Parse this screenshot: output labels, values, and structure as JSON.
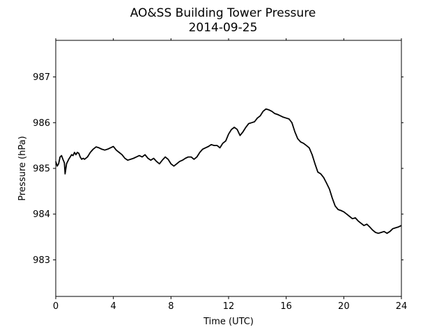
{
  "chart_data": {
    "type": "line",
    "title": "AO&SS Building Tower Pressure",
    "subtitle": "2014-09-25",
    "xlabel": "Time (UTC)",
    "ylabel": "Pressure (hPa)",
    "xlim": [
      0,
      24
    ],
    "ylim": [
      982.2,
      987.8
    ],
    "xticks": [
      0,
      4,
      8,
      12,
      16,
      20,
      24
    ],
    "xtick_labels": [
      "0",
      "4",
      "8",
      "12",
      "16",
      "20",
      "24"
    ],
    "yticks": [
      983,
      984,
      985,
      986,
      987
    ],
    "ytick_labels": [
      "983",
      "984",
      "985",
      "986",
      "987"
    ],
    "grid": false,
    "line_color": "#000000",
    "series": [
      {
        "x": [
          0.0,
          0.1,
          0.2,
          0.3,
          0.4,
          0.5,
          0.6,
          0.65,
          0.75,
          0.9,
          1.0,
          1.1,
          1.2,
          1.3,
          1.4,
          1.5,
          1.6,
          1.7,
          1.8,
          1.9,
          2.0,
          2.2,
          2.4,
          2.6,
          2.8,
          3.0,
          3.2,
          3.4,
          3.6,
          3.8,
          4.0,
          4.2,
          4.4,
          4.6,
          4.8,
          5.0,
          5.2,
          5.4,
          5.6,
          5.8,
          6.0,
          6.2,
          6.4,
          6.6,
          6.8,
          7.0,
          7.2,
          7.4,
          7.6,
          7.8,
          8.0,
          8.2,
          8.4,
          8.6,
          8.8,
          9.0,
          9.2,
          9.4,
          9.6,
          9.8,
          10.0,
          10.2,
          10.4,
          10.6,
          10.8,
          11.0,
          11.2,
          11.4,
          11.6,
          11.8,
          12.0,
          12.2,
          12.4,
          12.6,
          12.8,
          13.0,
          13.2,
          13.4,
          13.6,
          13.8,
          14.0,
          14.2,
          14.4,
          14.6,
          14.8,
          15.0,
          15.2,
          15.4,
          15.6,
          15.8,
          16.0,
          16.2,
          16.4,
          16.6,
          16.8,
          17.0,
          17.2,
          17.4,
          17.6,
          17.8,
          18.0,
          18.2,
          18.4,
          18.6,
          18.8,
          19.0,
          19.2,
          19.4,
          19.6,
          19.8,
          20.0,
          20.2,
          20.4,
          20.6,
          20.8,
          21.0,
          21.2,
          21.4,
          21.6,
          21.8,
          22.0,
          22.2,
          22.4,
          22.6,
          22.8,
          23.0,
          23.2,
          23.4,
          23.6,
          23.8,
          24.0
        ],
        "values": [
          985.15,
          985.05,
          985.1,
          985.25,
          985.28,
          985.2,
          985.12,
          984.88,
          985.1,
          985.2,
          985.25,
          985.3,
          985.28,
          985.35,
          985.3,
          985.35,
          985.33,
          985.25,
          985.2,
          985.22,
          985.2,
          985.25,
          985.35,
          985.42,
          985.47,
          985.45,
          985.42,
          985.4,
          985.42,
          985.45,
          985.48,
          985.4,
          985.35,
          985.3,
          985.22,
          985.18,
          985.2,
          985.22,
          985.25,
          985.28,
          985.25,
          985.3,
          985.22,
          985.18,
          985.22,
          985.15,
          985.1,
          985.18,
          985.25,
          985.2,
          985.1,
          985.05,
          985.1,
          985.15,
          985.18,
          985.22,
          985.25,
          985.25,
          985.2,
          985.25,
          985.35,
          985.42,
          985.45,
          985.48,
          985.52,
          985.5,
          985.5,
          985.45,
          985.55,
          985.6,
          985.75,
          985.85,
          985.9,
          985.85,
          985.72,
          985.8,
          985.9,
          985.98,
          986.0,
          986.02,
          986.1,
          986.15,
          986.25,
          986.3,
          986.28,
          986.25,
          986.2,
          986.18,
          986.15,
          986.12,
          986.1,
          986.08,
          986.0,
          985.8,
          985.65,
          985.58,
          985.55,
          985.5,
          985.45,
          985.3,
          985.1,
          984.92,
          984.88,
          984.8,
          984.68,
          984.55,
          984.35,
          984.18,
          984.1,
          984.08,
          984.05,
          984.0,
          983.95,
          983.9,
          983.92,
          983.85,
          983.8,
          983.75,
          983.78,
          983.72,
          983.65,
          983.6,
          983.58,
          983.6,
          983.62,
          983.58,
          983.62,
          983.68,
          983.7,
          983.72,
          983.75
        ]
      }
    ]
  }
}
